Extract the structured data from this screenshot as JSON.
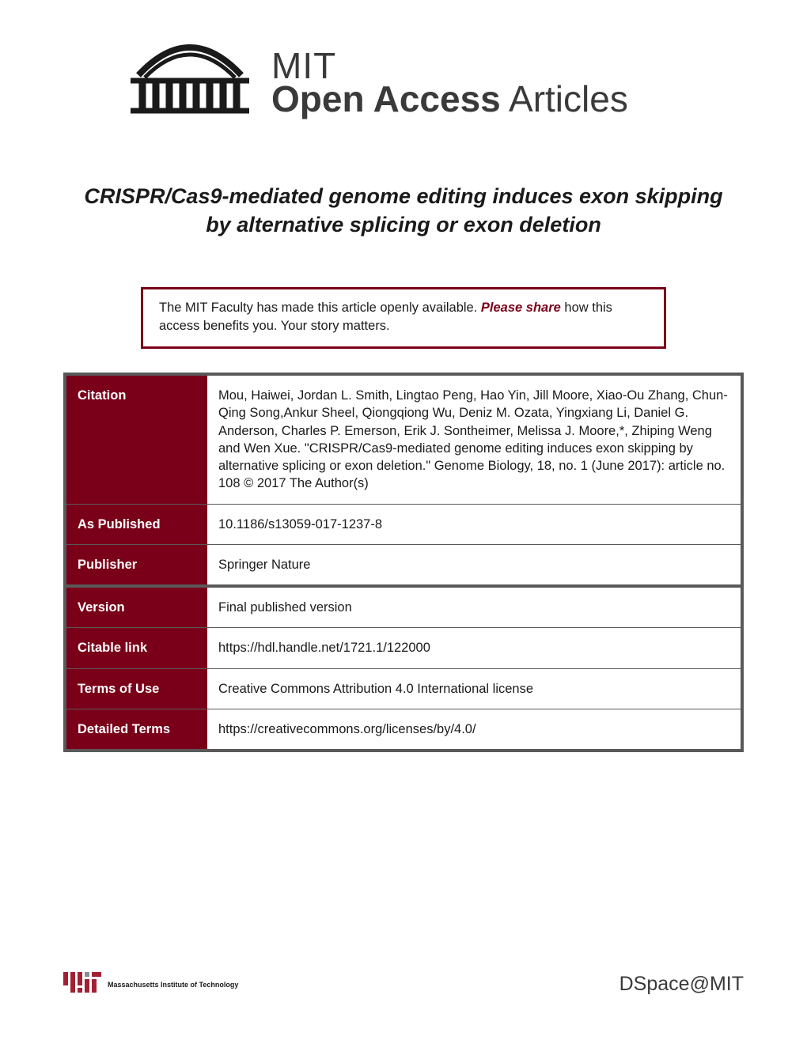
{
  "header": {
    "line1": "MIT",
    "line2_bold": "Open Access",
    "line2_light": " Articles"
  },
  "title": "CRISPR/Cas9-mediated genome editing induces exon skipping by alternative splicing or exon deletion",
  "share_box": {
    "pre": "The MIT Faculty has made this article openly available. ",
    "emphasis": "Please share",
    "post": " how this access benefits you. Your story matters."
  },
  "rows": [
    {
      "label": "Citation",
      "value": "Mou, Haiwei, Jordan L. Smith, Lingtao Peng, Hao Yin, Jill Moore, Xiao-Ou Zhang, Chun-Qing Song,Ankur Sheel, Qiongqiong Wu, Deniz M. Ozata, Yingxiang Li, Daniel G. Anderson, Charles P. Emerson, Erik J. Sontheimer, Melissa J. Moore,*, Zhiping Weng and Wen Xue. \"CRISPR/Cas9-mediated genome editing induces exon skipping by alternative splicing or exon deletion.\" Genome Biology, 18, no. 1 (June 2017): article no. 108 © 2017 The Author(s)",
      "break": false
    },
    {
      "label": "As Published",
      "value": "10.1186/s13059-017-1237-8",
      "break": false
    },
    {
      "label": "Publisher",
      "value": "Springer Nature",
      "break": false
    },
    {
      "label": "Version",
      "value": "Final published version",
      "break": true
    },
    {
      "label": "Citable link",
      "value": "https://hdl.handle.net/1721.1/122000",
      "break": false
    },
    {
      "label": "Terms of Use",
      "value": "Creative Commons Attribution 4.0 International license",
      "break": false
    },
    {
      "label": "Detailed Terms",
      "value": "https://creativecommons.org/licenses/by/4.0/",
      "break": false
    }
  ],
  "footer": {
    "mit_text": "Massachusetts Institute of Technology",
    "dspace": "DSpace@MIT"
  },
  "colors": {
    "maroon": "#7a0019",
    "dark_gray": "#595959",
    "text": "#1a1a1a",
    "header_gray": "#3a3a3a"
  }
}
